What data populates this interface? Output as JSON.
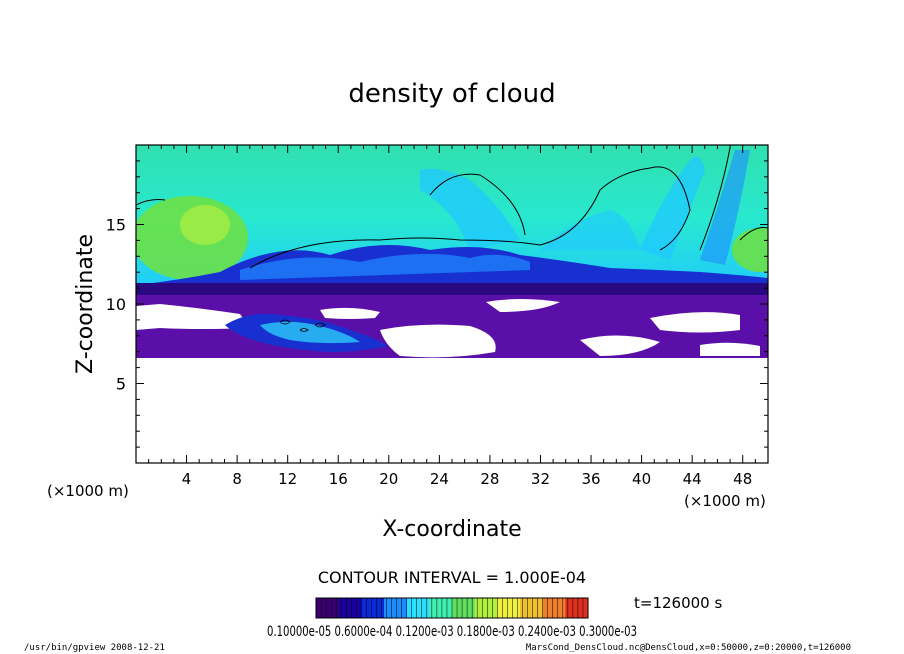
{
  "chart_data": {
    "type": "heatmap",
    "title": "density of cloud",
    "xlabel": "X-coordinate",
    "ylabel": "Z-coordinate",
    "x_unit_left": "(×1000 m)",
    "x_unit_right": "(×1000 m)",
    "xlim": [
      0,
      50
    ],
    "ylim": [
      0,
      20
    ],
    "x_ticks": [
      "4",
      "8",
      "12",
      "16",
      "20",
      "24",
      "28",
      "32",
      "36",
      "40",
      "44",
      "48"
    ],
    "y_ticks": [
      "5",
      "10",
      "15"
    ],
    "x_tick_values": [
      4,
      8,
      12,
      16,
      20,
      24,
      28,
      32,
      36,
      40,
      44,
      48
    ],
    "y_tick_values": [
      5,
      10,
      15
    ],
    "contour_interval": "CONTOUR INTERVAL = 1.000E-04",
    "time_label": "t=126000 s",
    "colorbar_labels": "0.10000e-05 0.6000e-04 0.1200e-03 0.1800e-03 0.2400e-03 0.3000e-03",
    "colorbar_colors": [
      "#3b0070",
      "#1a00a0",
      "#0a2ad8",
      "#1e8cff",
      "#2ee0ff",
      "#40f0b0",
      "#60e060",
      "#b0f040",
      "#f0f040",
      "#f0c030",
      "#f08030",
      "#e03020"
    ],
    "regions": [
      {
        "name": "upper-cyan-green",
        "color": "#28e8c0",
        "x": [
          0,
          50
        ],
        "z": [
          10.8,
          20
        ]
      },
      {
        "name": "upper-cloud-band",
        "color": "#1830d0",
        "x": [
          0,
          50
        ],
        "z": [
          10.5,
          12.2
        ]
      },
      {
        "name": "lower-violet-layer",
        "color": "#5a10a8",
        "x": [
          0,
          50
        ],
        "z": [
          6.4,
          10.6
        ]
      },
      {
        "name": "green-blob-left",
        "color": "#70e040",
        "x": [
          0.5,
          9
        ],
        "z": [
          12.2,
          17.5
        ]
      },
      {
        "name": "green-blob-right",
        "color": "#70e040",
        "x": [
          46.5,
          50
        ],
        "z": [
          12,
          15
        ]
      }
    ]
  },
  "footer": {
    "left": "/usr/bin/gpview   2008-12-21",
    "right": "MarsCond_DensCloud.nc@DensCloud,x=0:50000,z=0:20000,t=126000"
  }
}
